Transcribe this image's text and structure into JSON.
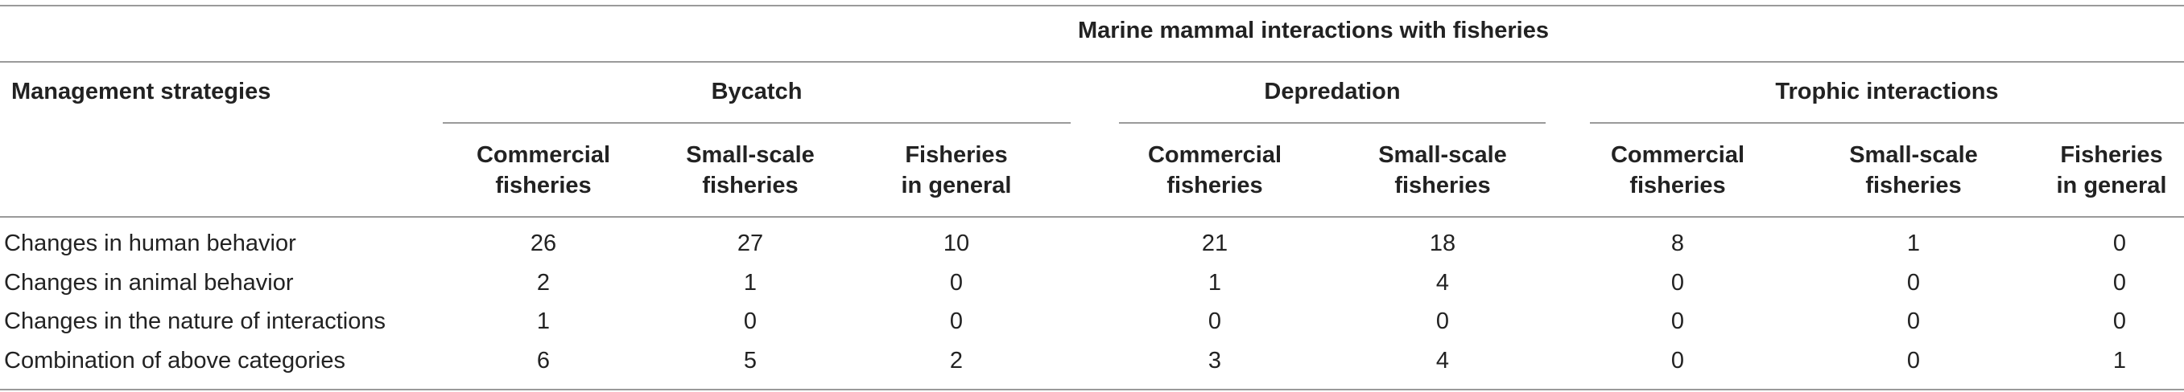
{
  "table": {
    "top_header": "Marine mammal interactions with fisheries",
    "row_header": "Management strategies",
    "groups": [
      {
        "label": "Bycatch"
      },
      {
        "label": "Depredation"
      },
      {
        "label": "Trophic interactions"
      }
    ],
    "subcolumns": [
      {
        "line1": "Commercial",
        "line2": "fisheries"
      },
      {
        "line1": "Small-scale",
        "line2": "fisheries"
      },
      {
        "line1": "Fisheries",
        "line2": "in general"
      },
      {
        "line1": "Commercial",
        "line2": "fisheries"
      },
      {
        "line1": "Small-scale",
        "line2": "fisheries"
      },
      {
        "line1": "Commercial",
        "line2": "fisheries"
      },
      {
        "line1": "Small-scale",
        "line2": "fisheries"
      },
      {
        "line1": "Fisheries",
        "line2": "in general"
      }
    ],
    "rows": [
      {
        "label": "Changes in human behavior",
        "values": [
          "26",
          "27",
          "10",
          "21",
          "18",
          "8",
          "1",
          "0"
        ]
      },
      {
        "label": "Changes in animal behavior",
        "values": [
          "2",
          "1",
          "0",
          "1",
          "4",
          "0",
          "0",
          "0"
        ]
      },
      {
        "label": "Changes in the nature of interactions",
        "values": [
          "1",
          "0",
          "0",
          "0",
          "0",
          "0",
          "0",
          "0"
        ]
      },
      {
        "label": "Combination of above categories",
        "values": [
          "6",
          "5",
          "2",
          "3",
          "4",
          "0",
          "0",
          "1"
        ]
      }
    ]
  }
}
